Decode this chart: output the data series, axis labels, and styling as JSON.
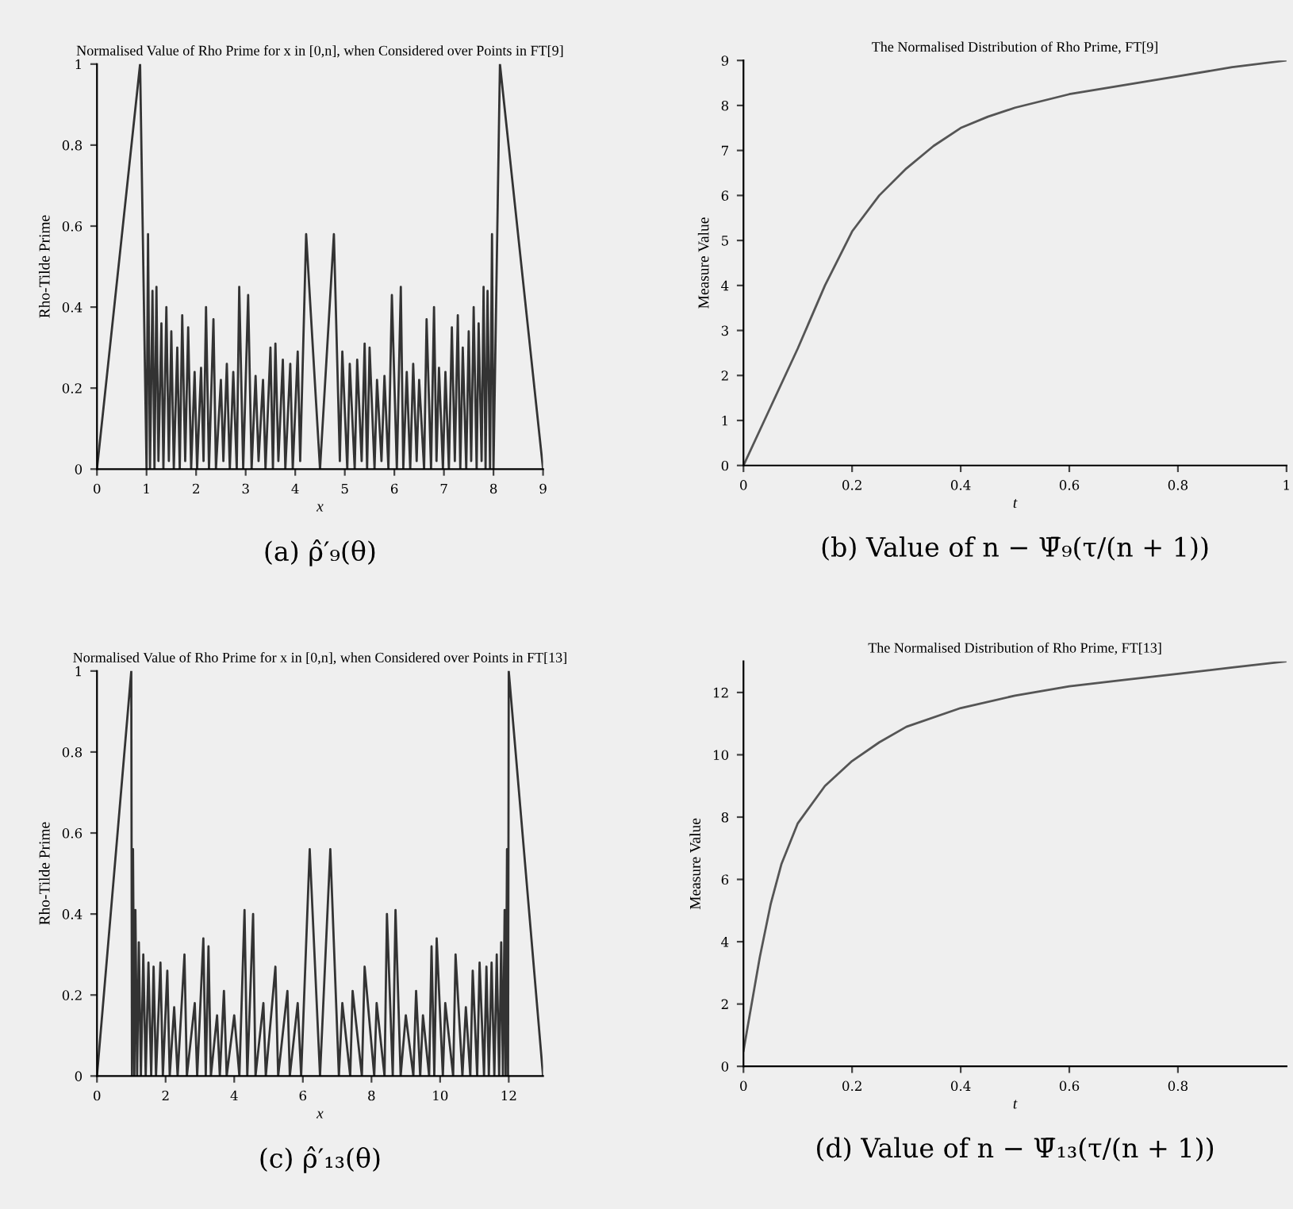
{
  "chart_data": [
    {
      "type": "line",
      "title": "Normalised Value of Rho Prime for x in [0,n], when Considered over Points in FT[9]",
      "xlabel": "x",
      "ylabel": "Rho-Tilde Prime",
      "annotations": [
        "(a) ρ̂′₉(θ)"
      ],
      "xlim": [
        0,
        9
      ],
      "ylim": [
        0,
        1
      ],
      "xticks": [
        0,
        1,
        2,
        3,
        4,
        5,
        6,
        7,
        8,
        9
      ],
      "yticks": [
        0,
        0.2,
        0.4,
        0.6,
        0.8,
        1
      ],
      "grid": false,
      "series": [
        {
          "color": "#333333",
          "x": [
            0,
            0.87,
            1.0,
            1.03,
            1.07,
            1.12,
            1.16,
            1.2,
            1.24,
            1.3,
            1.34,
            1.4,
            1.45,
            1.5,
            1.55,
            1.62,
            1.67,
            1.72,
            1.78,
            1.84,
            1.9,
            1.97,
            2.02,
            2.1,
            2.15,
            2.2,
            2.26,
            2.35,
            2.4,
            2.5,
            2.55,
            2.62,
            2.68,
            2.75,
            2.82,
            2.87,
            2.95,
            3.05,
            3.12,
            3.2,
            3.26,
            3.35,
            3.4,
            3.5,
            3.55,
            3.6,
            3.66,
            3.75,
            3.8,
            3.9,
            3.95,
            4.05,
            4.1,
            4.22,
            4.5,
            4.78,
            4.9,
            4.95,
            5.05,
            5.1,
            5.2,
            5.25,
            5.34,
            5.4,
            5.45,
            5.5,
            5.6,
            5.65,
            5.74,
            5.8,
            5.88,
            5.95,
            6.05,
            6.13,
            6.18,
            6.25,
            6.32,
            6.38,
            6.45,
            6.5,
            6.6,
            6.65,
            6.74,
            6.8,
            6.85,
            6.9,
            6.98,
            7.03,
            7.1,
            7.16,
            7.22,
            7.28,
            7.33,
            7.38,
            7.45,
            7.5,
            7.55,
            7.6,
            7.66,
            7.7,
            7.76,
            7.8,
            7.84,
            7.88,
            7.93,
            7.97,
            8.0,
            8.13,
            9
          ],
          "values": [
            0,
            1,
            0,
            0.58,
            0,
            0.44,
            0,
            0.45,
            0.02,
            0.36,
            0,
            0.4,
            0.02,
            0.34,
            0,
            0.3,
            0,
            0.38,
            0.02,
            0.35,
            0,
            0.24,
            0,
            0.25,
            0.02,
            0.4,
            0,
            0.37,
            0,
            0.22,
            0.02,
            0.26,
            0,
            0.24,
            0,
            0.45,
            0,
            0.43,
            0,
            0.23,
            0.02,
            0.22,
            0,
            0.3,
            0,
            0.31,
            0.02,
            0.27,
            0,
            0.26,
            0,
            0.29,
            0.02,
            0.58,
            0,
            0.58,
            0.02,
            0.29,
            0,
            0.26,
            0,
            0.27,
            0.02,
            0.31,
            0,
            0.3,
            0,
            0.22,
            0.02,
            0.23,
            0,
            0.43,
            0,
            0.45,
            0,
            0.24,
            0,
            0.26,
            0.02,
            0.22,
            0,
            0.37,
            0,
            0.4,
            0.02,
            0.25,
            0,
            0.24,
            0,
            0.35,
            0.02,
            0.38,
            0,
            0.3,
            0,
            0.34,
            0.02,
            0.4,
            0,
            0.36,
            0.02,
            0.45,
            0,
            0.44,
            0,
            0.58,
            0,
            1,
            0
          ]
        }
      ]
    },
    {
      "type": "line",
      "title": "The Normalised Distribution of Rho Prime, FT[9]",
      "xlabel": "t",
      "ylabel": "Measure Value",
      "annotations": [
        "(b) Value of n − Ψ̄₉(τ/(n + 1))"
      ],
      "xlim": [
        0,
        1
      ],
      "ylim": [
        0,
        9
      ],
      "xticks": [
        0,
        0.2,
        0.4,
        0.6,
        0.8,
        1
      ],
      "yticks": [
        0,
        1,
        2,
        3,
        4,
        5,
        6,
        7,
        8,
        9
      ],
      "grid": false,
      "series": [
        {
          "color": "#555555",
          "x": [
            0,
            0.05,
            0.1,
            0.15,
            0.2,
            0.25,
            0.3,
            0.35,
            0.4,
            0.45,
            0.5,
            0.6,
            0.7,
            0.8,
            0.9,
            1.0
          ],
          "values": [
            0,
            1.3,
            2.6,
            4.0,
            5.2,
            6.0,
            6.6,
            7.1,
            7.5,
            7.75,
            7.95,
            8.25,
            8.45,
            8.65,
            8.85,
            9.0
          ]
        }
      ]
    },
    {
      "type": "line",
      "title": "Normalised Value of Rho Prime for x in [0,n], when Considered over Points in FT[13]",
      "xlabel": "x",
      "ylabel": "Rho-Tilde Prime",
      "annotations": [
        "(c) ρ̂′₁₃(θ)"
      ],
      "xlim": [
        0,
        13
      ],
      "ylim": [
        0,
        1
      ],
      "xticks": [
        0,
        2,
        4,
        6,
        8,
        10,
        12
      ],
      "yticks": [
        0,
        0.2,
        0.4,
        0.6,
        0.8,
        1
      ],
      "grid": false,
      "series": [
        {
          "color": "#333333",
          "x": [
            0,
            1.0,
            1.02,
            1.05,
            1.09,
            1.12,
            1.17,
            1.22,
            1.28,
            1.35,
            1.42,
            1.5,
            1.58,
            1.65,
            1.72,
            1.85,
            1.92,
            2.05,
            2.12,
            2.25,
            2.35,
            2.55,
            2.62,
            2.85,
            2.92,
            3.1,
            3.17,
            3.25,
            3.32,
            3.5,
            3.58,
            3.7,
            3.78,
            4.0,
            4.15,
            4.3,
            4.38,
            4.55,
            4.62,
            4.85,
            4.92,
            5.2,
            5.28,
            5.55,
            5.62,
            5.85,
            5.95,
            6.2,
            6.5,
            6.8,
            7.05,
            7.15,
            7.38,
            7.45,
            7.72,
            7.8,
            8.08,
            8.15,
            8.38,
            8.45,
            8.62,
            8.7,
            8.85,
            9.0,
            9.22,
            9.3,
            9.42,
            9.5,
            9.68,
            9.75,
            9.83,
            9.9,
            10.08,
            10.15,
            10.38,
            10.45,
            10.65,
            10.75,
            10.88,
            10.95,
            11.08,
            11.15,
            11.28,
            11.35,
            11.42,
            11.5,
            11.58,
            11.65,
            11.72,
            11.78,
            11.83,
            11.88,
            11.91,
            11.95,
            11.98,
            12.0,
            13
          ],
          "values": [
            0,
            1,
            0,
            0.56,
            0,
            0.41,
            0,
            0.33,
            0,
            0.3,
            0,
            0.28,
            0,
            0.27,
            0,
            0.28,
            0,
            0.26,
            0,
            0.17,
            0,
            0.3,
            0,
            0.18,
            0,
            0.34,
            0,
            0.32,
            0,
            0.15,
            0,
            0.21,
            0,
            0.15,
            0,
            0.41,
            0,
            0.4,
            0,
            0.18,
            0,
            0.27,
            0,
            0.21,
            0,
            0.18,
            0,
            0.56,
            0,
            0.56,
            0,
            0.18,
            0,
            0.21,
            0,
            0.27,
            0,
            0.18,
            0,
            0.4,
            0,
            0.41,
            0,
            0.15,
            0,
            0.21,
            0,
            0.15,
            0,
            0.32,
            0,
            0.34,
            0,
            0.18,
            0,
            0.3,
            0,
            0.17,
            0,
            0.26,
            0,
            0.28,
            0,
            0.27,
            0,
            0.28,
            0,
            0.3,
            0,
            0.33,
            0,
            0.41,
            0,
            0.56,
            0,
            1,
            0
          ]
        }
      ]
    },
    {
      "type": "line",
      "title": "The Normalised Distribution of Rho Prime, FT[13]",
      "xlabel": "t",
      "ylabel": "Measure Value",
      "annotations": [
        "(d) Value of n − Ψ̄₁₃(τ/(n + 1))"
      ],
      "xlim": [
        0,
        1
      ],
      "ylim": [
        0,
        13
      ],
      "xticks": [
        0,
        0.2,
        0.4,
        0.6,
        0.8
      ],
      "yticks": [
        0,
        2,
        4,
        6,
        8,
        10,
        12
      ],
      "grid": false,
      "series": [
        {
          "color": "#555555",
          "x": [
            0,
            0.01,
            0.02,
            0.03,
            0.05,
            0.07,
            0.1,
            0.15,
            0.2,
            0.25,
            0.3,
            0.4,
            0.5,
            0.6,
            0.7,
            0.8,
            0.9,
            1.0
          ],
          "values": [
            0.5,
            1.5,
            2.5,
            3.5,
            5.2,
            6.5,
            7.8,
            9.0,
            9.8,
            10.4,
            10.9,
            11.5,
            11.9,
            12.2,
            12.4,
            12.6,
            12.8,
            13.0
          ]
        }
      ]
    }
  ]
}
